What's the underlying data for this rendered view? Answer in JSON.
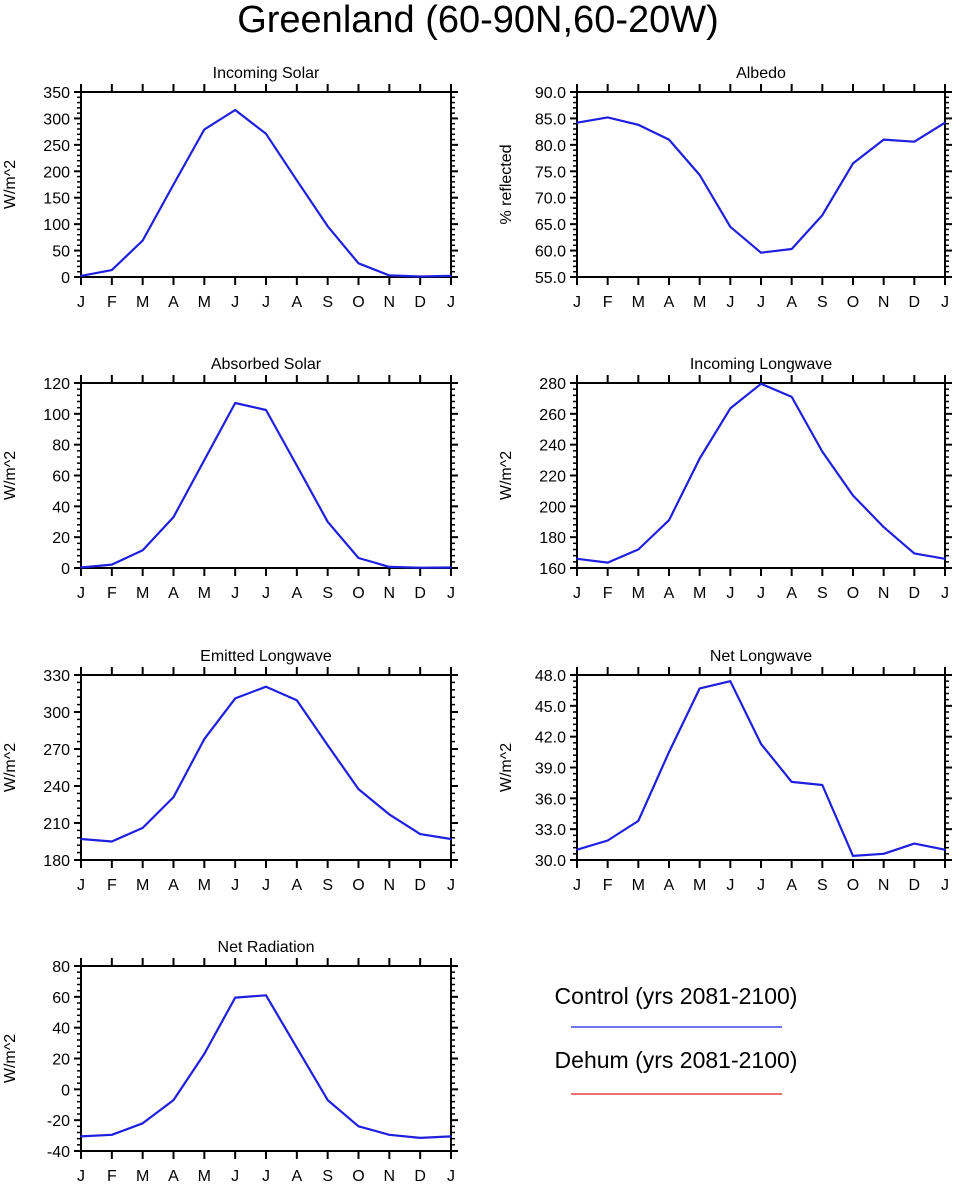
{
  "figure": {
    "title": "Greenland (60-90N,60-20W)",
    "months": [
      "J",
      "F",
      "M",
      "A",
      "M",
      "J",
      "J",
      "A",
      "S",
      "O",
      "N",
      "D",
      "J"
    ],
    "colors": {
      "control": "#1f1fe0",
      "dehum": "#e01f1f"
    }
  },
  "legend": {
    "control_label": "Control (yrs 2081-2100)",
    "dehum_label": "Dehum (yrs 2081-2100)"
  },
  "chart_data": [
    {
      "type": "line",
      "title": "Incoming Solar",
      "ylabel": "W/m^2",
      "xlabel": "",
      "x": [
        "J",
        "F",
        "M",
        "A",
        "M",
        "J",
        "J",
        "A",
        "S",
        "O",
        "N",
        "D",
        "J"
      ],
      "ylim": [
        0,
        350
      ],
      "yticks": [
        "0",
        "50",
        "100",
        "150",
        "200",
        "250",
        "300",
        "350"
      ],
      "series": [
        {
          "name": "Control (yrs 2081-2100)",
          "values": [
            2,
            13,
            69,
            175,
            279,
            316,
            271,
            183,
            96,
            26,
            3,
            1,
            2
          ]
        }
      ]
    },
    {
      "type": "line",
      "title": "Albedo",
      "ylabel": "% reflected",
      "xlabel": "",
      "x": [
        "J",
        "F",
        "M",
        "A",
        "M",
        "J",
        "J",
        "A",
        "S",
        "O",
        "N",
        "D",
        "J"
      ],
      "ylim": [
        55,
        90
      ],
      "yticks": [
        "55.0",
        "60.0",
        "65.0",
        "70.0",
        "75.0",
        "80.0",
        "85.0",
        "90.0"
      ],
      "series": [
        {
          "name": "Control (yrs 2081-2100)",
          "values": [
            84.2,
            85.2,
            83.8,
            81.0,
            74.3,
            64.5,
            59.6,
            60.3,
            66.7,
            76.5,
            81.0,
            80.6,
            84.2
          ]
        }
      ]
    },
    {
      "type": "line",
      "title": "Absorbed Solar",
      "ylabel": "W/m^2",
      "xlabel": "",
      "x": [
        "J",
        "F",
        "M",
        "A",
        "M",
        "J",
        "J",
        "A",
        "S",
        "O",
        "N",
        "D",
        "J"
      ],
      "ylim": [
        0,
        120
      ],
      "yticks": [
        "0",
        "20",
        "40",
        "60",
        "80",
        "100",
        "120"
      ],
      "series": [
        {
          "name": "Control (yrs 2081-2100)",
          "values": [
            0.3,
            2.2,
            11.5,
            33,
            70,
            107,
            102.5,
            66.5,
            30,
            6.5,
            0.7,
            0.2,
            0.3
          ]
        }
      ]
    },
    {
      "type": "line",
      "title": "Incoming Longwave",
      "ylabel": "W/m^2",
      "xlabel": "",
      "x": [
        "J",
        "F",
        "M",
        "A",
        "M",
        "J",
        "J",
        "A",
        "S",
        "O",
        "N",
        "D",
        "J"
      ],
      "ylim": [
        160,
        280
      ],
      "yticks": [
        "160",
        "180",
        "200",
        "220",
        "240",
        "260",
        "280"
      ],
      "series": [
        {
          "name": "Control (yrs 2081-2100)",
          "values": [
            166,
            163.5,
            172,
            191,
            231,
            263.5,
            279.5,
            271,
            235.5,
            207,
            186.5,
            169.5,
            166
          ]
        }
      ]
    },
    {
      "type": "line",
      "title": "Emitted Longwave",
      "ylabel": "W/m^2",
      "xlabel": "",
      "x": [
        "J",
        "F",
        "M",
        "A",
        "M",
        "J",
        "J",
        "A",
        "S",
        "O",
        "N",
        "D",
        "J"
      ],
      "ylim": [
        180,
        330
      ],
      "yticks": [
        "180",
        "210",
        "240",
        "270",
        "300",
        "330"
      ],
      "series": [
        {
          "name": "Control (yrs 2081-2100)",
          "values": [
            197,
            195,
            206,
            231,
            278,
            311,
            320.5,
            309.5,
            273,
            237.5,
            217,
            201,
            197
          ]
        }
      ]
    },
    {
      "type": "line",
      "title": "Net Longwave",
      "ylabel": "W/m^2",
      "xlabel": "",
      "x": [
        "J",
        "F",
        "M",
        "A",
        "M",
        "J",
        "J",
        "A",
        "S",
        "O",
        "N",
        "D",
        "J"
      ],
      "ylim": [
        30,
        48
      ],
      "yticks": [
        "30.0",
        "33.0",
        "36.0",
        "39.0",
        "42.0",
        "45.0",
        "48.0"
      ],
      "series": [
        {
          "name": "Control (yrs 2081-2100)",
          "values": [
            31.0,
            31.9,
            33.8,
            40.5,
            46.7,
            47.4,
            41.3,
            37.6,
            37.3,
            30.4,
            30.6,
            31.6,
            31.0
          ]
        }
      ]
    },
    {
      "type": "line",
      "title": "Net Radiation",
      "ylabel": "W/m^2",
      "xlabel": "",
      "x": [
        "J",
        "F",
        "M",
        "A",
        "M",
        "J",
        "J",
        "A",
        "S",
        "O",
        "N",
        "D",
        "J"
      ],
      "ylim": [
        -40,
        80
      ],
      "yticks": [
        "-40",
        "-20",
        "0",
        "20",
        "40",
        "60",
        "80"
      ],
      "series": [
        {
          "name": "Control (yrs 2081-2100)",
          "values": [
            -30.5,
            -29.5,
            -22,
            -7,
            23,
            59.5,
            61,
            27,
            -7,
            -24,
            -29.5,
            -31.5,
            -30.5
          ]
        }
      ]
    }
  ]
}
